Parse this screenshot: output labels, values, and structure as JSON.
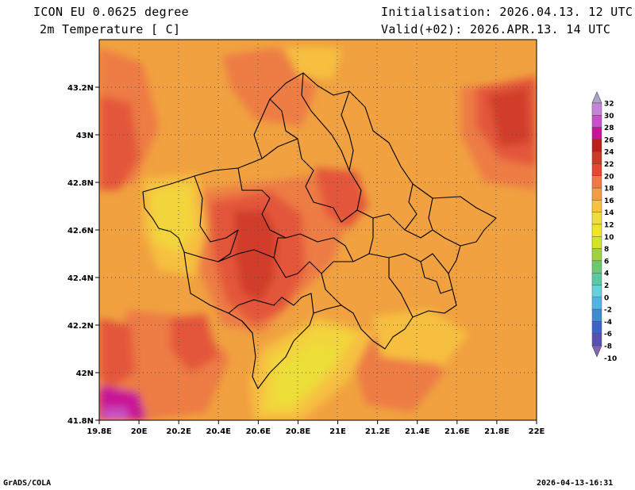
{
  "header": {
    "model": "ICON EU 0.0625 degree",
    "variable": "2m Temperature [ C]",
    "init": "Initialisation: 2026.04.13. 12 UTC",
    "valid": "Valid(+02): 2026.APR.13. 14 UTC"
  },
  "footer": {
    "software": "GrADS/COLA",
    "timestamp": "2026-04-13-16:31"
  },
  "axes": {
    "x_ticks": [
      "19.8E",
      "20E",
      "20.2E",
      "20.4E",
      "20.6E",
      "20.8E",
      "21E",
      "21.2E",
      "21.4E",
      "21.6E",
      "21.8E",
      "22E"
    ],
    "y_ticks": [
      "43.2N",
      "43N",
      "42.8N",
      "42.6N",
      "42.4N",
      "42.2N",
      "42N",
      "41.8N"
    ],
    "lon_range": [
      19.8,
      22.0
    ],
    "lat_range": [
      41.8,
      43.4
    ]
  },
  "legend": {
    "labels": [
      "32",
      "30",
      "28",
      "26",
      "24",
      "22",
      "20",
      "18",
      "16",
      "14",
      "12",
      "10",
      "8",
      "6",
      "4",
      "2",
      "0",
      "-2",
      "-4",
      "-6",
      "-8",
      "-10"
    ],
    "colors": [
      "#b4a0cc",
      "#c386d6",
      "#c850c8",
      "#c81496",
      "#be1e1e",
      "#c83c28",
      "#e64632",
      "#ee7846",
      "#f0a040",
      "#f7c23e",
      "#f0dc3c",
      "#f0e628",
      "#d2e628",
      "#a0d23c",
      "#6ec870",
      "#5ac8a0",
      "#64d2dc",
      "#50b4e6",
      "#3c8cd2",
      "#3c64c8",
      "#5a50b4",
      "#8264b4"
    ]
  },
  "map": {
    "field_colors": {
      "t10": "#ecdf38",
      "t12": "#f2d43c",
      "t14": "#f6bf3f",
      "t16": "#f1a13f",
      "t18": "#ed7c45",
      "t20": "#e4573a",
      "t22": "#d13d2b",
      "t26": "#c81496",
      "t28": "#c850c8"
    },
    "borders_color": "#000000"
  }
}
